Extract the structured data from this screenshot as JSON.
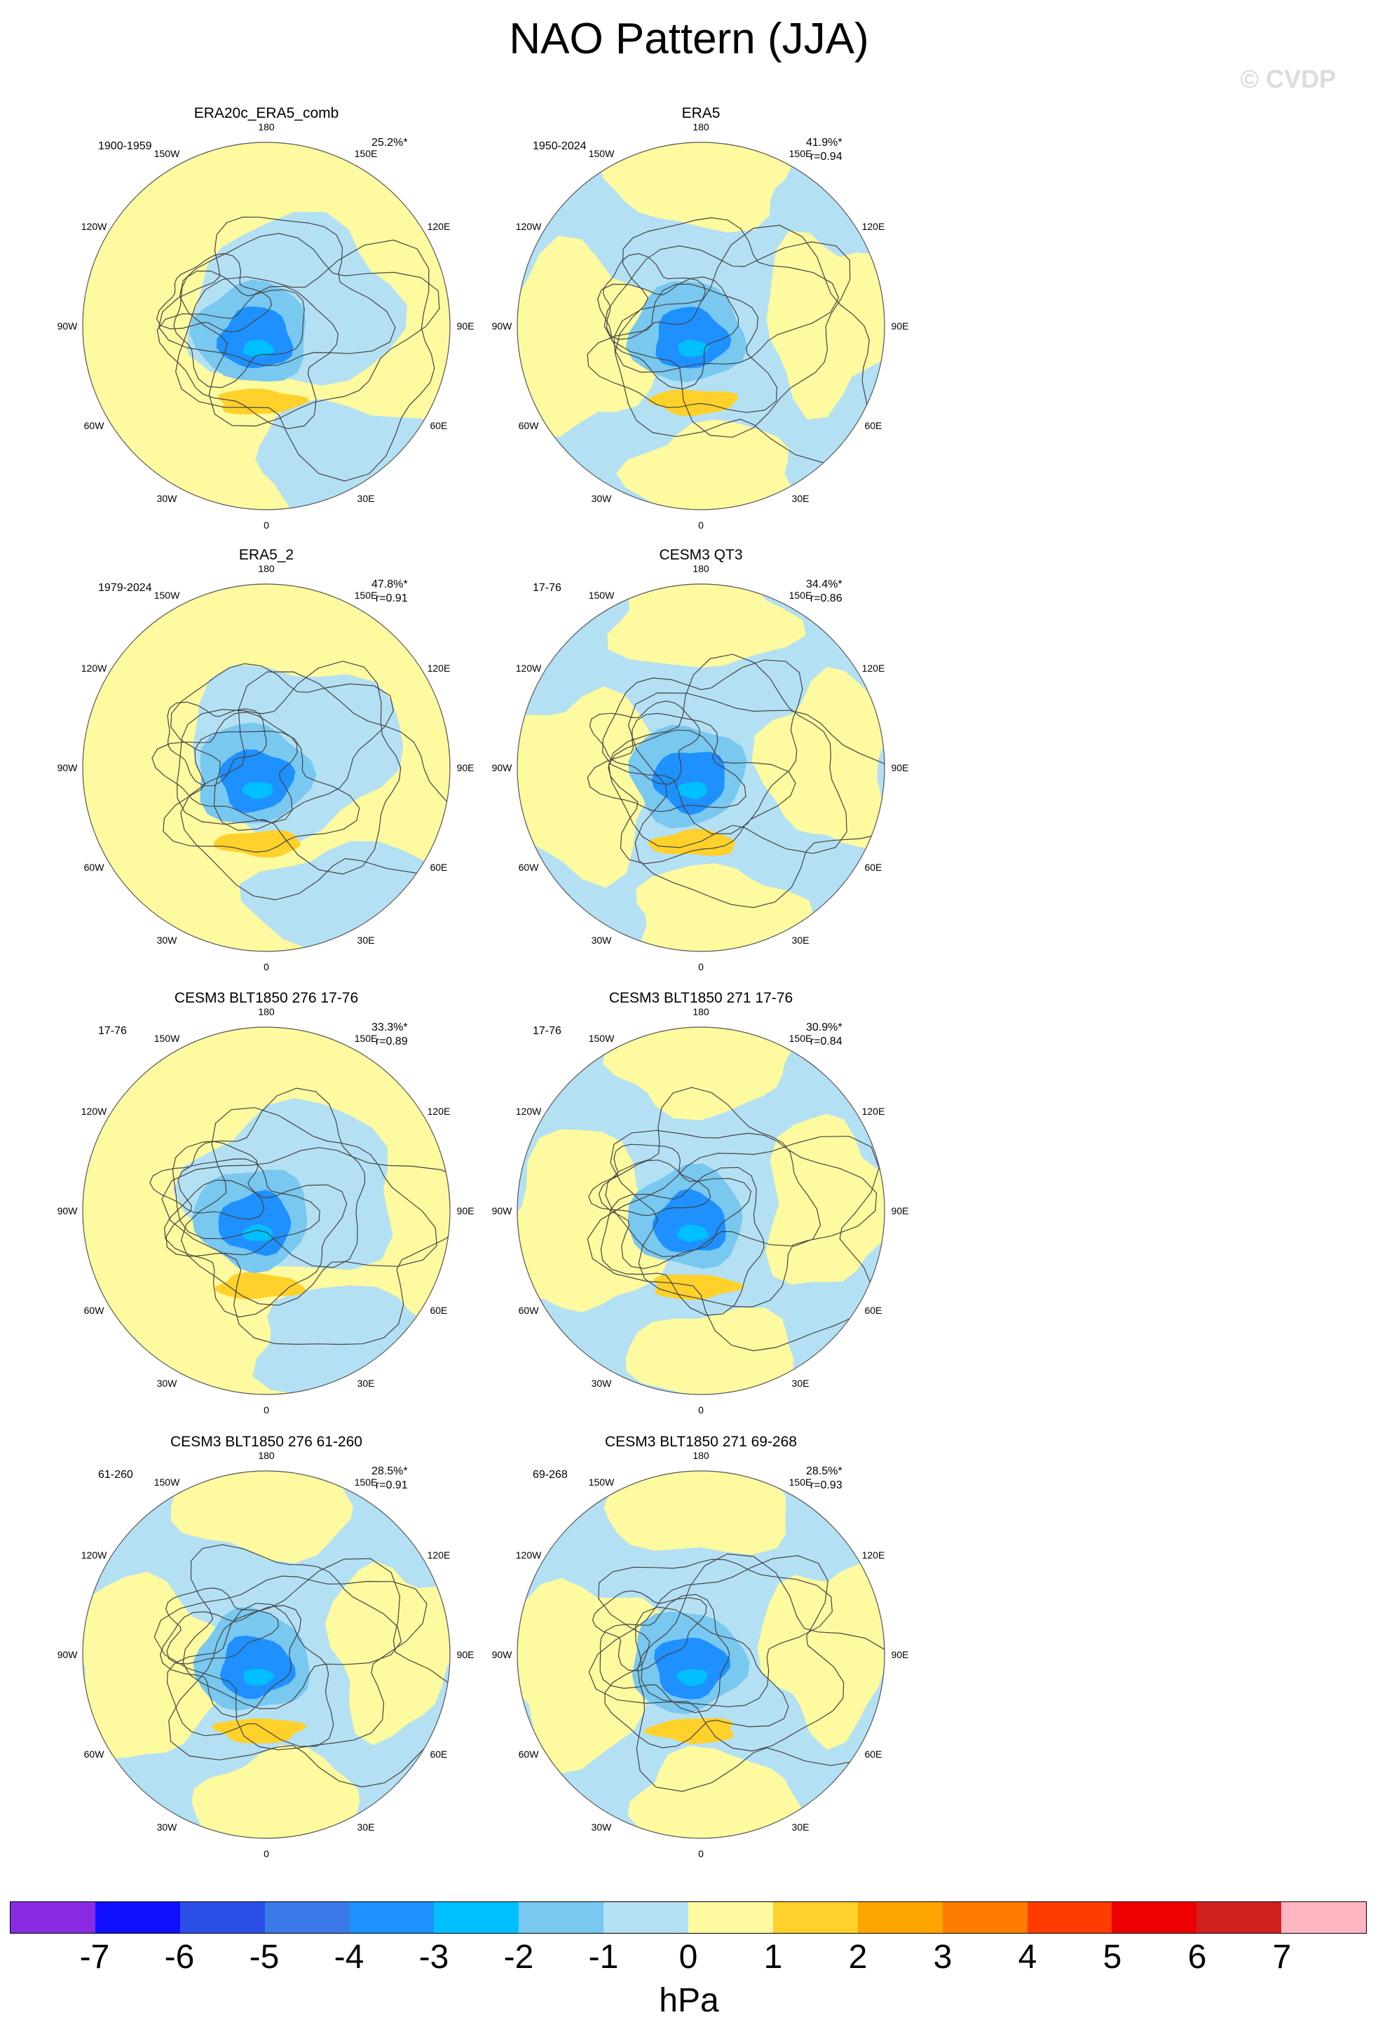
{
  "title": "NAO Pattern (JJA)",
  "watermark": "© CVDP",
  "longitude_labels": [
    "180",
    "150E",
    "120E",
    "90E",
    "60E",
    "30E",
    "0",
    "30W",
    "60W",
    "90W",
    "120W",
    "150W"
  ],
  "panels": [
    {
      "title": "ERA20c_ERA5_comb",
      "period": "1900-1959",
      "pct": "25.2%*",
      "r": ""
    },
    {
      "title": "ERA5",
      "period": "1950-2024",
      "pct": "41.9%*",
      "r": "r=0.94"
    },
    {
      "title": "ERA5_2",
      "period": "1979-2024",
      "pct": "47.8%*",
      "r": "r=0.91"
    },
    {
      "title": "CESM3 QT3",
      "period": "17-76",
      "pct": "34.4%*",
      "r": "r=0.86"
    },
    {
      "title": "CESM3 BLT1850 276 17-76",
      "period": "17-76",
      "pct": "33.3%*",
      "r": "r=0.89"
    },
    {
      "title": "CESM3 BLT1850 271 17-76",
      "period": "17-76",
      "pct": "30.9%*",
      "r": "r=0.84"
    },
    {
      "title": "CESM3 BLT1850 276 61-260",
      "period": "61-260",
      "pct": "28.5%*",
      "r": "r=0.91"
    },
    {
      "title": "CESM3 BLT1850 271 69-268",
      "period": "69-268",
      "pct": "28.5%*",
      "r": "r=0.93"
    }
  ],
  "colorbar": {
    "units": "hPa",
    "labels": [
      "-7",
      "-6",
      "-5",
      "-4",
      "-3",
      "-2",
      "-1",
      "0",
      "1",
      "2",
      "3",
      "4",
      "5",
      "6",
      "7"
    ],
    "colors": [
      "#8a2be2",
      "#1010ff",
      "#2b4fe6",
      "#3a7ae8",
      "#1e90ff",
      "#00bfff",
      "#78c8f0",
      "#b4e0f4",
      "#fdfa9f",
      "#ffd12a",
      "#ffa500",
      "#ff7c00",
      "#ff3c00",
      "#ee0000",
      "#d02020",
      "#ffb6c1"
    ]
  },
  "map_colors": {
    "ocean_neg_weak": "#b4e0f4",
    "pos_weak": "#fdfa9f",
    "neg_mid": "#78c8f0",
    "neg_strong": "#1e90ff",
    "neg_core": "#00bfff",
    "pos_mid": "#ffd12a",
    "coast": "#444444"
  }
}
